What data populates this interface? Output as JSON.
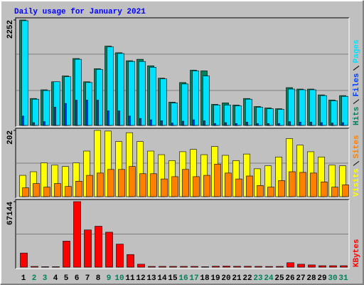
{
  "title": "Daily usage for January 2021",
  "chart_data": [
    {
      "type": "bar",
      "ylim": [
        0,
        2252
      ],
      "yticks": [
        2252
      ],
      "series": [
        {
          "name": "Hits",
          "color": "#00805c",
          "values": [
            2252,
            575,
            761,
            932,
            1056,
            1429,
            932,
            1211,
            1693,
            1553,
            1382,
            1413,
            1273,
            1009,
            497,
            916,
            1180,
            1165,
            450,
            481,
            435,
            575,
            404,
            373,
            357,
            807,
            776,
            776,
            652,
            543,
            637
          ]
        },
        {
          "name": "Files",
          "color": "#0040ff",
          "values": [
            200,
            60,
            80,
            390,
            470,
            540,
            540,
            540,
            310,
            310,
            200,
            150,
            120,
            100,
            50,
            90,
            120,
            100,
            40,
            60,
            40,
            70,
            40,
            40,
            40,
            80,
            70,
            70,
            60,
            50,
            60
          ]
        },
        {
          "name": "Pages",
          "color": "#00e0ff",
          "values": [
            2237,
            560,
            745,
            932,
            1040,
            1413,
            916,
            1196,
            1677,
            1537,
            1366,
            1366,
            1242,
            994,
            481,
            885,
            1165,
            1056,
            435,
            435,
            419,
            560,
            388,
            357,
            342,
            776,
            761,
            761,
            637,
            528,
            621
          ]
        }
      ]
    },
    {
      "type": "bar",
      "ylim": [
        0,
        202
      ],
      "yticks": [
        202
      ],
      "series": [
        {
          "name": "Visits",
          "color": "#ffff00",
          "values": [
            65,
            76,
            103,
            96,
            92,
            103,
            139,
            202,
            200,
            168,
            195,
            168,
            139,
            128,
            110,
            137,
            144,
            128,
            153,
            126,
            110,
            130,
            85,
            94,
            121,
            177,
            157,
            137,
            121,
            96,
            94
          ]
        },
        {
          "name": "Sites",
          "color": "#ff8000",
          "values": [
            27,
            40,
            29,
            40,
            31,
            47,
            65,
            72,
            83,
            83,
            92,
            70,
            70,
            54,
            61,
            83,
            61,
            65,
            99,
            72,
            54,
            63,
            34,
            29,
            49,
            76,
            74,
            72,
            45,
            29,
            36
          ]
        }
      ]
    },
    {
      "type": "bar",
      "ylim": [
        0,
        67144
      ],
      "yticks": [
        67144
      ],
      "categories": [
        "1",
        "2",
        "3",
        "4",
        "5",
        "6",
        "7",
        "8",
        "9",
        "10",
        "11",
        "12",
        "13",
        "14",
        "15",
        "16",
        "17",
        "18",
        "19",
        "20",
        "21",
        "22",
        "23",
        "24",
        "25",
        "26",
        "27",
        "28",
        "29",
        "30",
        "31"
      ],
      "weekend_color": "#00805c",
      "weekends": [
        "2",
        "3",
        "9",
        "10",
        "16",
        "17",
        "23",
        "24",
        "30",
        "31"
      ],
      "series": [
        {
          "name": "KBytes",
          "color": "#ff0000",
          "values": [
            14500,
            760,
            500,
            500,
            26700,
            67144,
            38150,
            41960,
            35860,
            23650,
            12970,
            3050,
            760,
            800,
            800,
            800,
            800,
            500,
            1000,
            1100,
            900,
            900,
            800,
            700,
            760,
            4580,
            3050,
            2300,
            1500,
            1500,
            1500
          ]
        }
      ]
    }
  ]
}
